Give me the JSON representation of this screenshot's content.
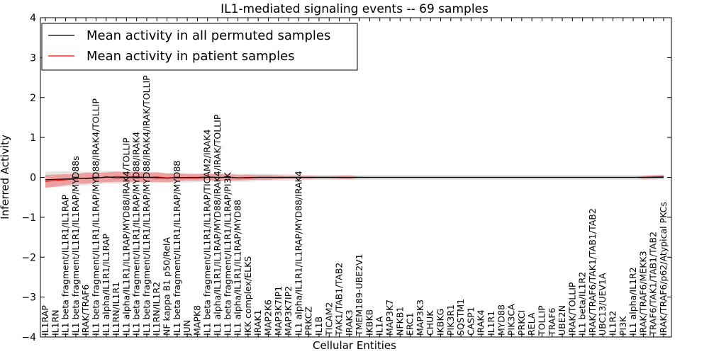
{
  "chart_data": {
    "type": "line",
    "title": "IL1-mediated signaling events -- 69 samples",
    "xlabel": "Cellular Entities",
    "ylabel": "Inferred Activity",
    "ylim": [
      -4,
      4
    ],
    "yticks": [
      -4,
      -3,
      -2,
      -1,
      0,
      1,
      2,
      3,
      4
    ],
    "grid": false,
    "legend_position": "top-left",
    "categories": [
      "IL1RAP",
      "IL1RN",
      "IL1 beta fragment/IL1R1/IL1RAP",
      "IL1 beta fragment/IL1R1/IL1RAP/MYD88s",
      "IRAK/TRAF6",
      "IL1 beta fragment/IL1R1/IL1RAP/MYD88/IRAK4/TOLLIP",
      "IL1 alpha/IL1R1/IL1RAP",
      "IL1RN/IL1R1",
      "IL1 alpha/IL1R1/IL1RAP/MYD88/IRAK4/TOLLIP",
      "IL1 beta fragment/IL1R1/IL1RAP/MYD88/IRAK4",
      "IL1 beta fragment/IL1R1/IL1RAP/MYD88/IRAK4/IRAK/TOLLIP",
      "IL1RN/IL1R2",
      "NF kappa B1 p50/RelA",
      "IL1 beta fragment/IL1R1/IL1RAP/MYD88",
      "JUN",
      "MAPK8",
      "IL1 beta fragment/IL1R1/IL1RAP/TICAM2/IRAK4",
      "IL1 alpha/IL1R1/IL1RAP/MYD88/IRAK4/IRAK/TOLLIP",
      "IL1 beta fragment/IL1R1/IL1RAP/PI3K",
      "IL1 alpha/IL1R1/IL1RAP/MYD88",
      "IKK complex/ELKS",
      "IRAK1",
      "MAP2K6",
      "MAP3K7IP1",
      "MAP3K7IP2",
      "IL1 alpha/IL1R1/IL1RAP/MYD88/IRAK4",
      "PRKCZ",
      "IL1B",
      "TICAM2",
      "TAK1/TAB1/TAB2",
      "IRAK3",
      "TMEM189-UBE2V1",
      "IKBKB",
      "IL1A",
      "MAP3K7",
      "NFKB1",
      "ERC1",
      "MAP3K3",
      "CHUK",
      "IKBKG",
      "PIK3R1",
      "SQSTM1",
      "CASP1",
      "IRAK4",
      "IL1R1",
      "MYD88",
      "PIK3CA",
      "PRKCI",
      "RELA",
      "TOLLIP",
      "TRAF6",
      "UBE2N",
      "IRAK/TOLLIP",
      "IL1 beta/IL1R2",
      "IRAK/TRAF6/TAK1/TAB1/TAB2",
      "UBC13/UEV1A",
      "IL1R2",
      "PI3K",
      "IL1 alpha/IL1R2",
      "IRAK/TRAF6/MEKK3",
      "TRAF6/TAK1/TAB1/TAB2",
      "IRAK/TRAF6/p62/Atypical PKCs"
    ],
    "series": [
      {
        "name": "Mean activity in all permuted samples",
        "color": "#000000",
        "values": [
          -0.06,
          -0.05,
          -0.04,
          -0.03,
          -0.03,
          -0.02,
          0.01,
          -0.01,
          0.0,
          -0.01,
          0.0,
          -0.01,
          -0.02,
          -0.01,
          -0.01,
          -0.01,
          0.0,
          0.0,
          0.0,
          -0.01,
          -0.01,
          0.0,
          0.0,
          0.0,
          0.0,
          0.0,
          0.0,
          0.0,
          0.0,
          0.0,
          0.0,
          0.0,
          0.0,
          0.0,
          0.0,
          0.0,
          0.0,
          0.0,
          0.0,
          0.0,
          0.0,
          0.0,
          0.0,
          0.0,
          0.0,
          0.0,
          0.0,
          0.0,
          0.0,
          0.0,
          0.0,
          0.0,
          0.0,
          0.0,
          0.0,
          0.0,
          0.0,
          0.0,
          0.0,
          0.0,
          0.0,
          0.0
        ],
        "band": [
          0.2,
          0.2,
          0.19,
          0.18,
          0.17,
          0.16,
          0.16,
          0.15,
          0.14,
          0.14,
          0.13,
          0.13,
          0.12,
          0.12,
          0.12,
          0.11,
          0.1,
          0.1,
          0.1,
          0.1,
          0.1,
          0.09,
          0.09,
          0.08,
          0.08,
          0.07,
          0.06,
          0.06,
          0.06,
          0.06,
          0.06,
          0.06,
          0.06,
          0.06,
          0.06,
          0.06,
          0.06,
          0.06,
          0.06,
          0.06,
          0.06,
          0.06,
          0.06,
          0.06,
          0.06,
          0.06,
          0.06,
          0.06,
          0.06,
          0.06,
          0.06,
          0.06,
          0.06,
          0.06,
          0.06,
          0.06,
          0.06,
          0.06,
          0.06,
          0.06,
          0.06,
          0.06
        ]
      },
      {
        "name": "Mean activity in patient samples",
        "color": "#ff0000",
        "values": [
          -0.1,
          -0.08,
          -0.06,
          -0.04,
          -0.02,
          -0.01,
          0.0,
          0.02,
          0.01,
          0.02,
          0.0,
          0.01,
          -0.01,
          0.0,
          0.0,
          0.0,
          0.01,
          0.0,
          0.0,
          -0.01,
          0.0,
          0.0,
          0.0,
          0.0,
          0.0,
          0.0,
          0.0,
          0.0,
          0.0,
          0.0,
          0.0,
          0.0,
          0.0,
          0.0,
          0.0,
          0.0,
          0.0,
          0.0,
          0.0,
          0.0,
          0.0,
          0.0,
          0.0,
          0.0,
          0.0,
          0.0,
          0.0,
          0.0,
          0.0,
          0.0,
          0.0,
          0.0,
          0.0,
          0.0,
          0.0,
          0.0,
          0.0,
          0.0,
          0.0,
          0.0,
          0.01,
          0.02
        ],
        "band": [
          0.16,
          0.15,
          0.14,
          0.12,
          0.14,
          0.12,
          0.12,
          0.13,
          0.12,
          0.13,
          0.12,
          0.12,
          0.11,
          0.1,
          0.08,
          0.08,
          0.08,
          0.08,
          0.08,
          0.07,
          0.07,
          0.06,
          0.06,
          0.05,
          0.04,
          0.04,
          0.04,
          0.03,
          0.03,
          0.04,
          0.05,
          0.02,
          0.01,
          0.01,
          0.0,
          0.0,
          0.0,
          0.0,
          0.0,
          0.0,
          0.0,
          0.0,
          0.0,
          0.0,
          0.0,
          0.0,
          0.0,
          0.0,
          0.0,
          0.0,
          0.0,
          0.0,
          0.0,
          0.0,
          0.0,
          0.0,
          0.0,
          0.0,
          0.0,
          0.04,
          0.04,
          0.04
        ]
      }
    ]
  }
}
